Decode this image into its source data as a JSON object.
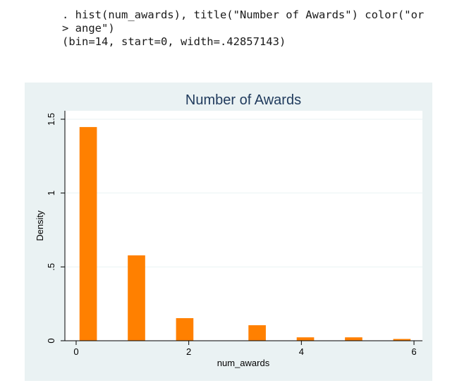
{
  "code": {
    "lines": [
      ". hist(num_awards), title(\"Number of Awards\") color(\"or",
      "> ange\")",
      "(bin=14, start=0, width=.42857143)"
    ]
  },
  "colors": {
    "bar": "#ff8000",
    "outer_background": "#eaf2f3",
    "plot_background": "#ffffff",
    "title": "#1f3a5c",
    "grid": "#eaf2f3",
    "axis": "#000000"
  },
  "chart_data": {
    "type": "bar",
    "title": "Number of Awards",
    "xlabel": "num_awards",
    "ylabel": "Density",
    "xlim": [
      -0.2,
      6.15
    ],
    "ylim": [
      0,
      1.5
    ],
    "xticks": [
      {
        "value": 0,
        "label": "0"
      },
      {
        "value": 2,
        "label": "2"
      },
      {
        "value": 4,
        "label": "4"
      },
      {
        "value": 6,
        "label": "6"
      }
    ],
    "yticks": [
      {
        "value": 0,
        "label": "0"
      },
      {
        "value": 0.5,
        "label": ".5"
      },
      {
        "value": 1,
        "label": "1"
      },
      {
        "value": 1.5,
        "label": "1.5"
      }
    ],
    "grid": true,
    "bin_width": 0.42857143,
    "bars": [
      {
        "x": 0,
        "density": 1.447
      },
      {
        "x": 0.857,
        "density": 0.578
      },
      {
        "x": 1.714,
        "density": 0.153
      },
      {
        "x": 3.0,
        "density": 0.105
      },
      {
        "x": 3.857,
        "density": 0.023
      },
      {
        "x": 4.714,
        "density": 0.023
      },
      {
        "x": 5.571,
        "density": 0.012
      }
    ]
  }
}
